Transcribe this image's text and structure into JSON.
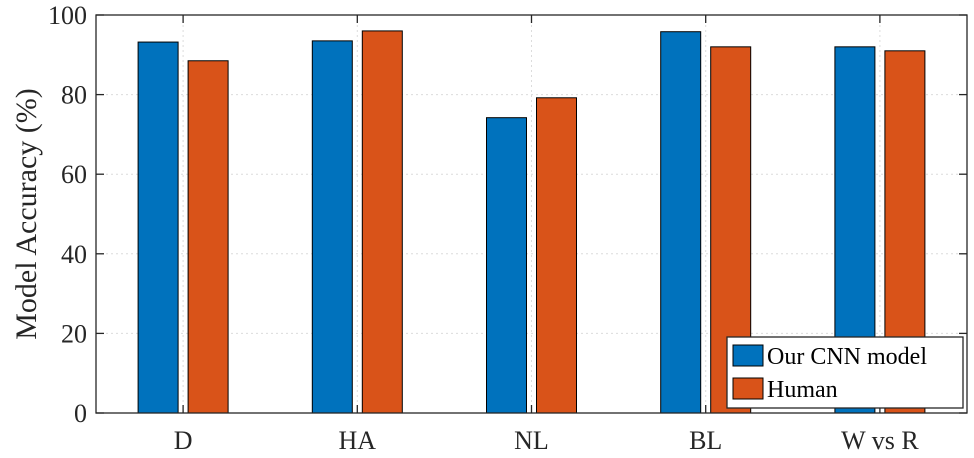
{
  "chart_data": {
    "type": "bar",
    "categories": [
      "D",
      "HA",
      "NL",
      "BL",
      "W vs R"
    ],
    "series": [
      {
        "name": "Our CNN model",
        "values": [
          93.2,
          93.5,
          74.2,
          95.8,
          92.0
        ],
        "color": "#0072BD"
      },
      {
        "name": "Human",
        "values": [
          88.5,
          96.0,
          79.2,
          92.0,
          91.0
        ],
        "color": "#D95319"
      }
    ],
    "title": "",
    "xlabel": "",
    "ylabel": "Model Accuracy (%)",
    "ylim": [
      0,
      100
    ],
    "yticks": [
      "0",
      "20",
      "40",
      "60",
      "80",
      "100"
    ],
    "grid": true,
    "legend_position": "bottom-right"
  }
}
